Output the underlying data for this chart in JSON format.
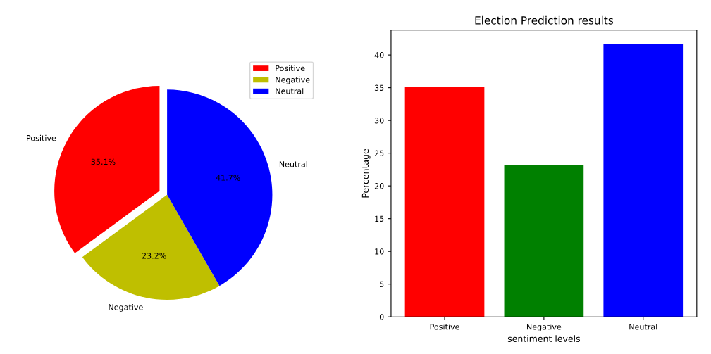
{
  "chart_data": [
    {
      "type": "pie",
      "categories": [
        "Positive",
        "Negative",
        "Neutral"
      ],
      "values": [
        35.1,
        23.2,
        41.7
      ],
      "colors": [
        "#ff0000",
        "#bfbf00",
        "#0000ff"
      ],
      "value_labels": [
        "35.1%",
        "23.2%",
        "41.7%"
      ],
      "legend": "top right"
    },
    {
      "type": "bar",
      "title": "Election Prediction results",
      "xlabel": "sentiment levels",
      "ylabel": "Percentage",
      "categories": [
        "Positive",
        "Negative",
        "Neutral"
      ],
      "values": [
        35.1,
        23.2,
        41.7
      ],
      "colors": [
        "#ff0000",
        "#008000",
        "#0000ff"
      ],
      "ylim": [
        0,
        43.8
      ],
      "yticks": [
        0,
        5,
        10,
        15,
        20,
        25,
        30,
        35,
        40
      ],
      "grid": false
    }
  ]
}
